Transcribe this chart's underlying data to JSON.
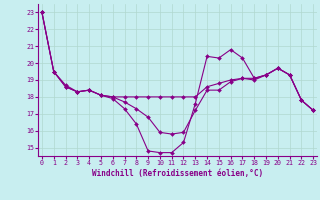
{
  "xlabel": "Windchill (Refroidissement éolien,°C)",
  "background_color": "#c8eef0",
  "grid_color": "#b0d8d0",
  "line_color": "#880088",
  "xlim": [
    -0.3,
    23.3
  ],
  "ylim": [
    14.5,
    23.5
  ],
  "yticks": [
    15,
    16,
    17,
    18,
    19,
    20,
    21,
    22,
    23
  ],
  "xticks": [
    0,
    1,
    2,
    3,
    4,
    5,
    6,
    7,
    8,
    9,
    10,
    11,
    12,
    13,
    14,
    15,
    16,
    17,
    18,
    19,
    20,
    21,
    22,
    23
  ],
  "line1": [
    23.0,
    19.5,
    18.6,
    18.3,
    18.4,
    18.1,
    17.9,
    17.3,
    16.4,
    14.8,
    14.7,
    14.7,
    15.3,
    17.6,
    20.4,
    20.3,
    20.8,
    20.3,
    19.1,
    19.3,
    19.7,
    19.3,
    17.8,
    17.2
  ],
  "line2": [
    23.0,
    19.5,
    18.7,
    18.3,
    18.4,
    18.1,
    18.0,
    18.0,
    18.0,
    18.0,
    18.0,
    18.0,
    18.0,
    18.0,
    18.6,
    18.8,
    19.0,
    19.1,
    19.1,
    19.3,
    19.7,
    19.3,
    17.8,
    17.2
  ],
  "line3": [
    23.0,
    19.5,
    18.6,
    18.3,
    18.4,
    18.1,
    18.0,
    17.7,
    17.3,
    16.8,
    15.9,
    15.8,
    15.9,
    17.2,
    18.4,
    18.4,
    18.9,
    19.1,
    19.0,
    19.3,
    19.7,
    19.3,
    17.8,
    17.2
  ],
  "xlabel_fontsize": 5.5,
  "tick_fontsize": 4.8,
  "marker_size": 2.0,
  "line_width": 0.8
}
